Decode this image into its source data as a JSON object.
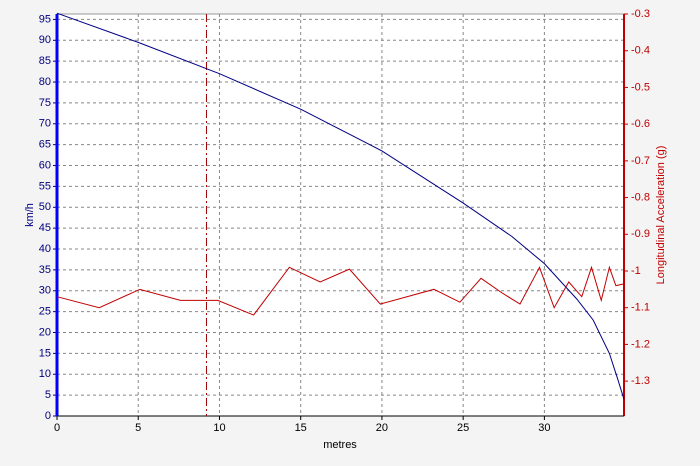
{
  "chart_data": {
    "type": "line",
    "xlabel": "metres",
    "ylabel": "km/h",
    "y2label": "Longitudinal Acceleration (g)",
    "xlim": [
      0,
      34.9
    ],
    "xticks": [
      0,
      5,
      10,
      15,
      20,
      25,
      30
    ],
    "ylim": [
      0,
      96.3
    ],
    "yticks": [
      0,
      5,
      10,
      15,
      20,
      25,
      30,
      35,
      40,
      45,
      50,
      55,
      60,
      65,
      70,
      75,
      80,
      85,
      90,
      95
    ],
    "y2lim": [
      -1.395,
      -0.3
    ],
    "y2ticks": [
      -0.3,
      -0.4,
      -0.5,
      -0.6,
      -0.7,
      -0.8,
      -0.9,
      -1,
      -1.1,
      -1.2,
      -1.3
    ],
    "grid": true,
    "cursor_x": 9.2,
    "series": [
      {
        "color": "#000080",
        "x": [
          0,
          5,
          10,
          15,
          18,
          20,
          25,
          28,
          30,
          32,
          33,
          34,
          34.5,
          34.9
        ],
        "values": [
          96.5,
          89.5,
          82,
          73.5,
          67.5,
          63.5,
          51,
          43,
          36.5,
          28,
          23,
          15,
          9,
          4
        ]
      },
      {
        "color": "#c00000",
        "axis": "y2",
        "x": [
          0,
          2.6,
          5.1,
          7.6,
          9.9,
          12.1,
          14.3,
          16.2,
          18,
          19.9,
          23.2,
          24.8,
          26.1,
          27.4,
          28.5,
          29.7,
          30.6,
          31.5,
          32.3,
          32.9,
          33.5,
          34,
          34.4,
          34.9
        ],
        "values": [
          -1.07,
          -1.1,
          -1.05,
          -1.08,
          -1.08,
          -1.12,
          -0.99,
          -1.03,
          -0.995,
          -1.09,
          -1.05,
          -1.085,
          -1.02,
          -1.06,
          -1.09,
          -0.99,
          -1.1,
          -1.03,
          -1.07,
          -0.99,
          -1.08,
          -0.99,
          -1.04,
          -1.035
        ]
      }
    ]
  }
}
